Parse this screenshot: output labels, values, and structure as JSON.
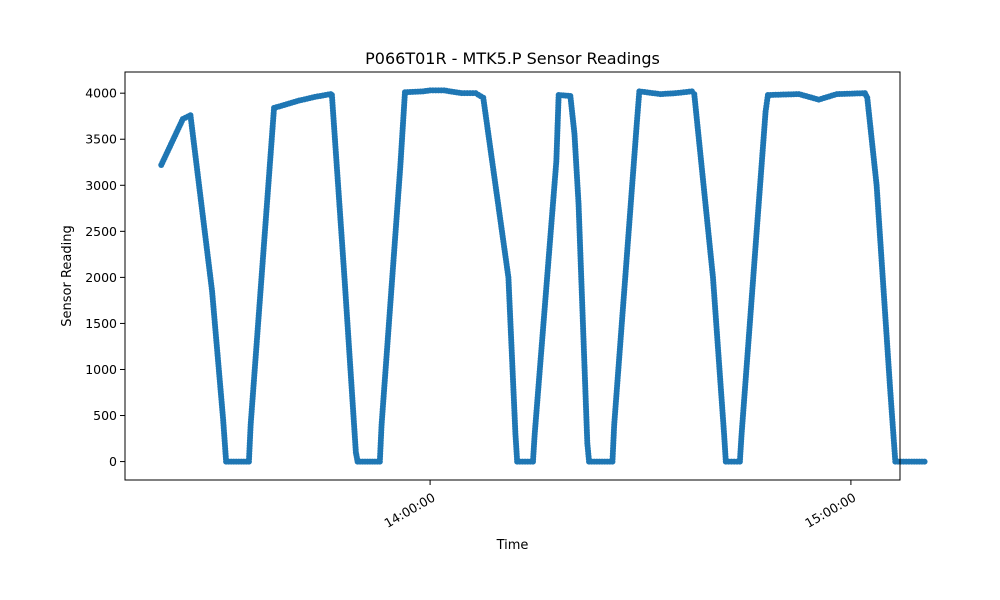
{
  "chart_data": {
    "type": "line",
    "title": "P066T01R - MTK5.P Sensor Readings",
    "xlabel": "Time",
    "ylabel": "Sensor Reading",
    "x_unit": "time",
    "xlim": [
      "13:16:30",
      "15:07:00"
    ],
    "ylim": [
      -200,
      4230
    ],
    "x_ticks": [
      "14:00:00",
      "15:00:00"
    ],
    "y_ticks": [
      0,
      500,
      1000,
      1500,
      2000,
      2500,
      3000,
      3500,
      4000
    ],
    "series": [
      {
        "color": "#1f77b4",
        "marker": "circle",
        "points": [
          [
            "13:21:40",
            3220
          ],
          [
            "13:24:45",
            3720
          ],
          [
            "13:25:50",
            3760
          ],
          [
            "13:28:55",
            1850
          ],
          [
            "13:30:30",
            450
          ],
          [
            "13:30:55",
            0
          ],
          [
            "13:34:10",
            0
          ],
          [
            "13:34:25",
            400
          ],
          [
            "13:37:45",
            3840
          ],
          [
            "13:41:20",
            3920
          ],
          [
            "13:43:35",
            3960
          ],
          [
            "13:45:50",
            3990
          ],
          [
            "13:46:00",
            3980
          ],
          [
            "13:47:50",
            1950
          ],
          [
            "13:49:25",
            100
          ],
          [
            "13:49:40",
            0
          ],
          [
            "13:52:50",
            0
          ],
          [
            "13:53:05",
            400
          ],
          [
            "13:55:45",
            3200
          ],
          [
            "13:56:25",
            4010
          ],
          [
            "13:59:00",
            4020
          ],
          [
            "14:00:00",
            4030
          ],
          [
            "14:02:00",
            4030
          ],
          [
            "14:04:30",
            4000
          ],
          [
            "14:06:30",
            4000
          ],
          [
            "14:07:35",
            3950
          ],
          [
            "14:11:10",
            2000
          ],
          [
            "14:12:10",
            300
          ],
          [
            "14:12:25",
            0
          ],
          [
            "14:14:40",
            0
          ],
          [
            "14:14:55",
            300
          ],
          [
            "14:18:00",
            3260
          ],
          [
            "14:18:20",
            3980
          ],
          [
            "14:20:00",
            3970
          ],
          [
            "14:20:35",
            3560
          ],
          [
            "14:21:10",
            2800
          ],
          [
            "14:22:25",
            200
          ],
          [
            "14:22:40",
            0
          ],
          [
            "14:26:00",
            0
          ],
          [
            "14:26:15",
            400
          ],
          [
            "14:29:30",
            3700
          ],
          [
            "14:29:50",
            4020
          ],
          [
            "14:32:50",
            3990
          ],
          [
            "14:35:00",
            4000
          ],
          [
            "14:37:20",
            4020
          ],
          [
            "14:37:40",
            3990
          ],
          [
            "14:40:20",
            2000
          ],
          [
            "14:41:55",
            300
          ],
          [
            "14:42:10",
            0
          ],
          [
            "14:44:10",
            0
          ],
          [
            "14:44:25",
            300
          ],
          [
            "14:47:50",
            3800
          ],
          [
            "14:48:10",
            3980
          ],
          [
            "14:52:35",
            3990
          ],
          [
            "14:54:00",
            3960
          ],
          [
            "14:55:25",
            3930
          ],
          [
            "14:58:00",
            3990
          ],
          [
            "15:02:00",
            4000
          ],
          [
            "15:02:20",
            3950
          ],
          [
            "15:03:40",
            3000
          ],
          [
            "15:05:35",
            800
          ],
          [
            "15:06:20",
            0
          ],
          [
            "15:08:40",
            0
          ],
          [
            "15:10:30",
            0
          ]
        ]
      }
    ]
  }
}
